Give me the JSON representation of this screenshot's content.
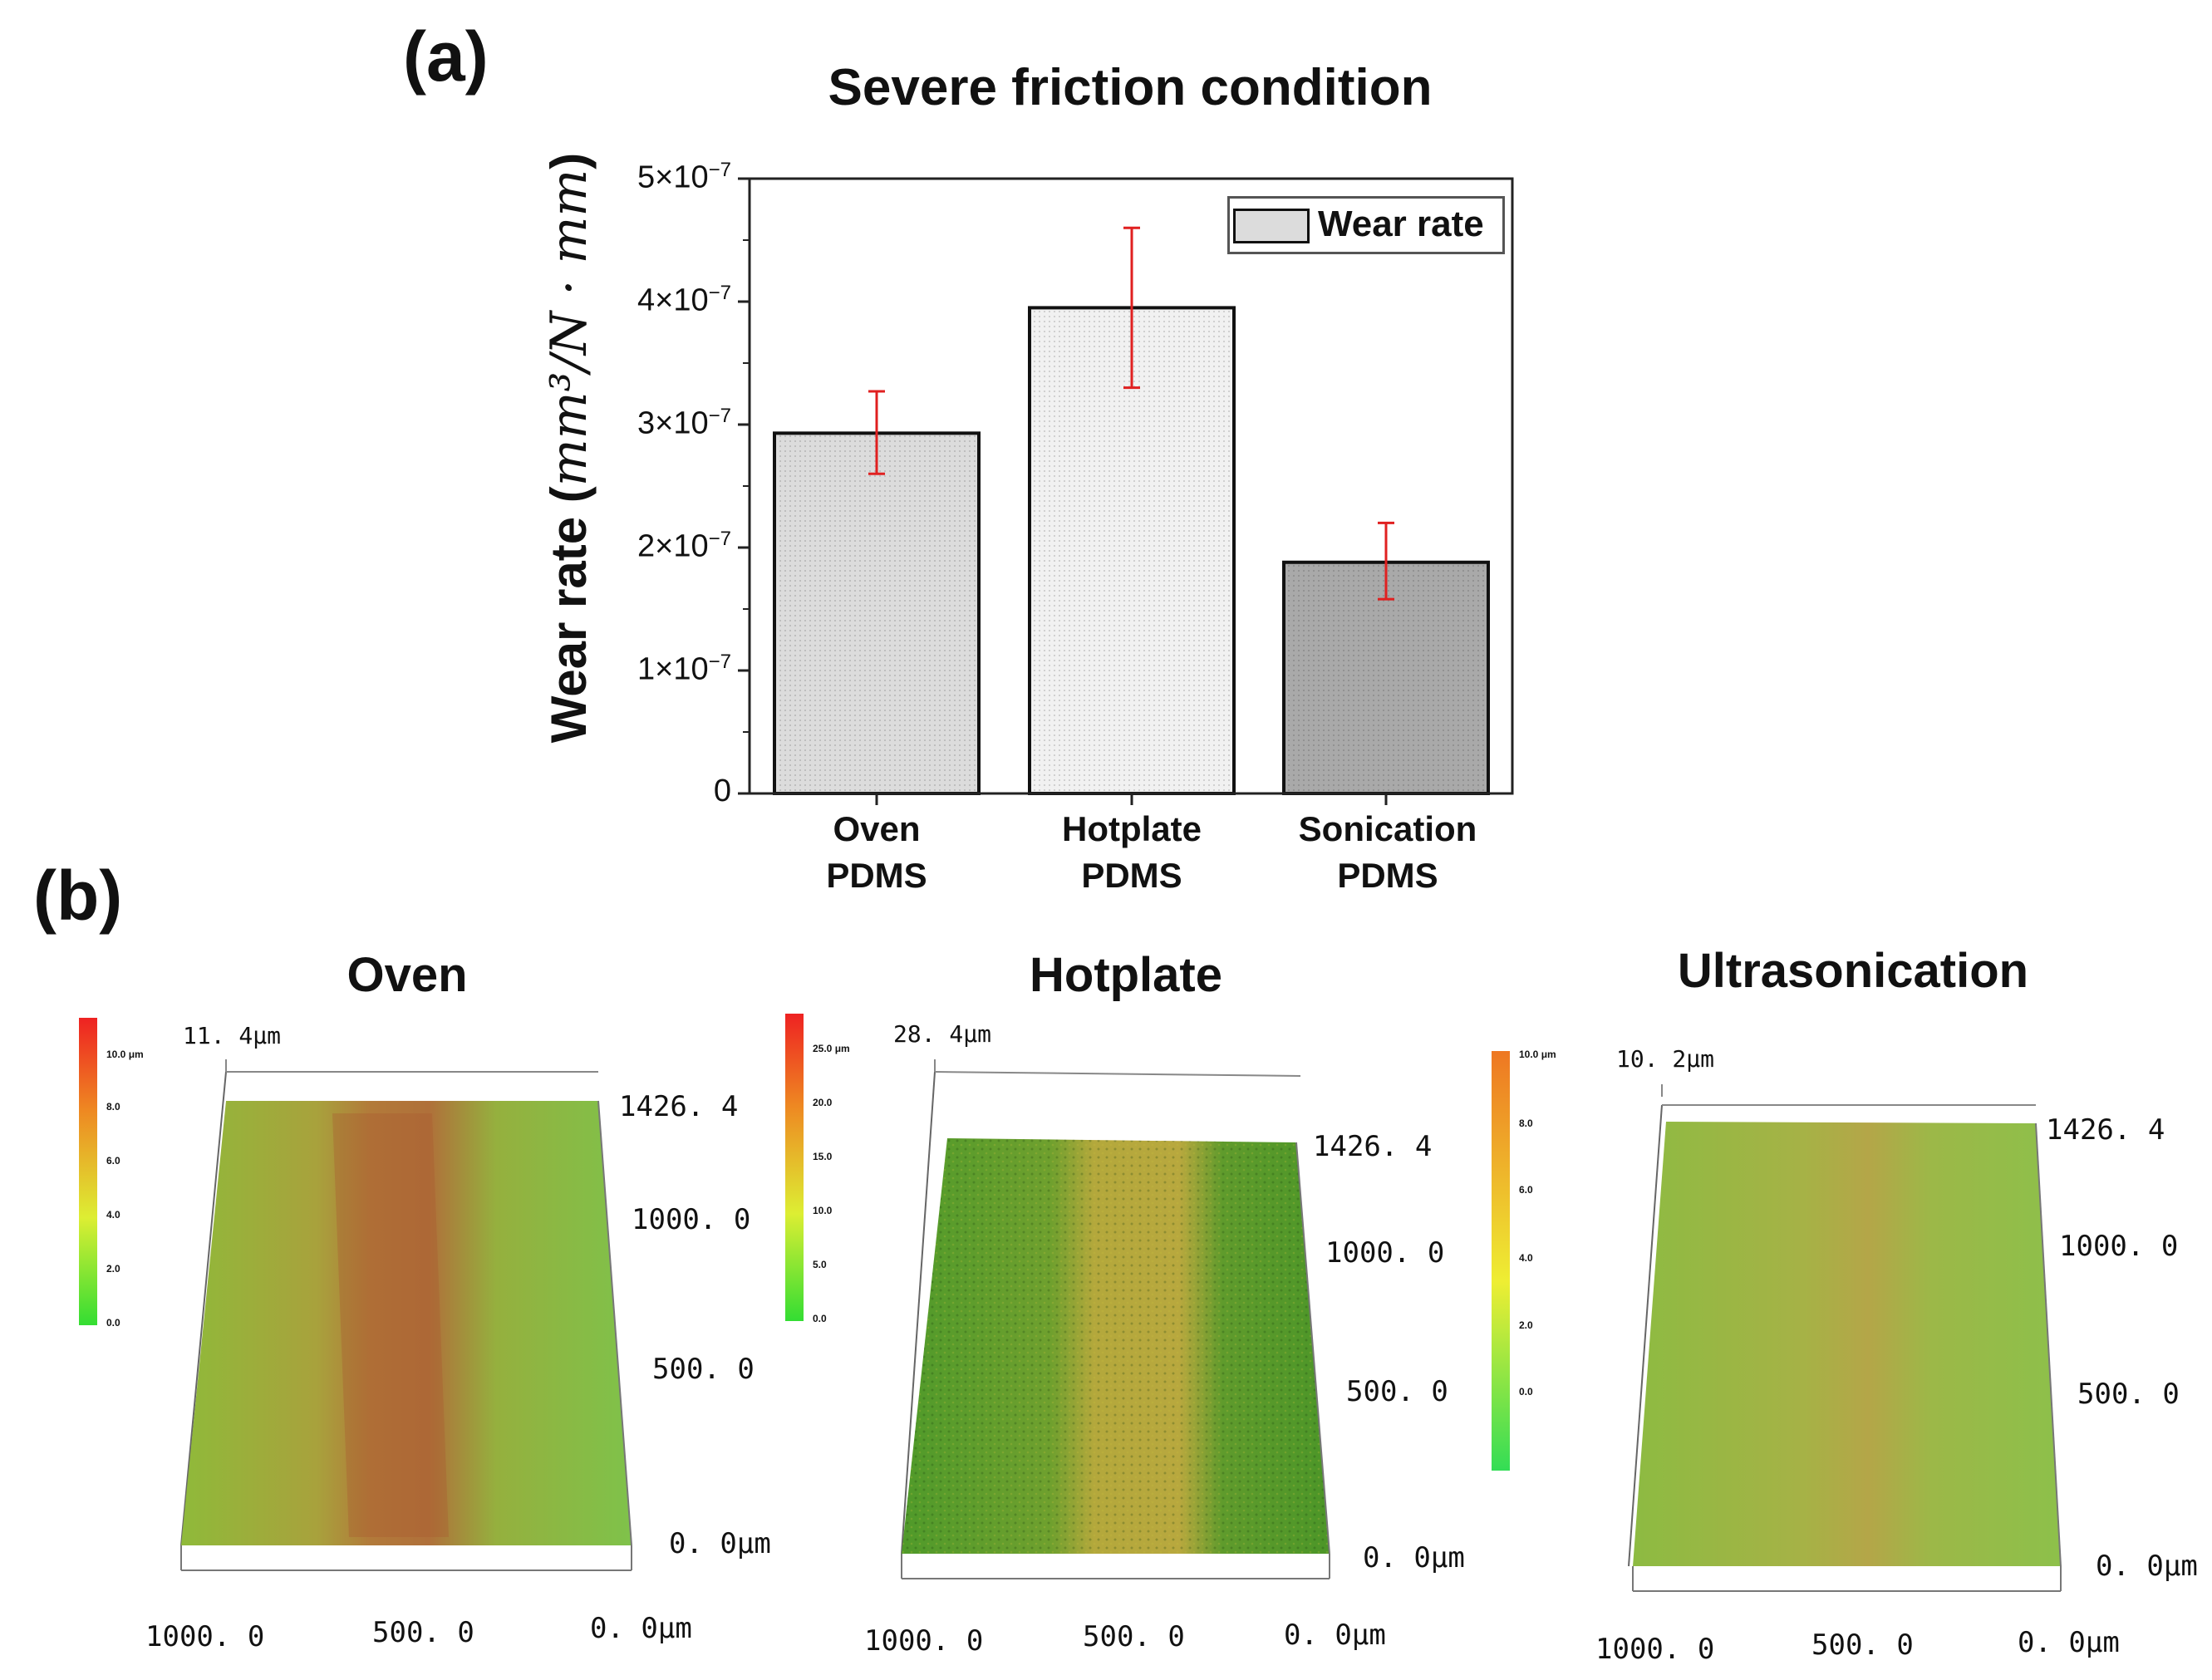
{
  "panel_a_label": "(a)",
  "panel_b_label": "(b)",
  "chart_data": {
    "type": "bar",
    "title": "Severe friction condition",
    "ylabel_prefix": "Wear rate (",
    "ylabel_units": "mm³/N · mm",
    "ylabel_suffix": ")",
    "categories": [
      {
        "line1": "Oven",
        "line2": "PDMS"
      },
      {
        "line1": "Hotplate",
        "line2": "PDMS"
      },
      {
        "line1": "Sonication",
        "line2": "PDMS"
      }
    ],
    "values": [
      2.93e-07,
      3.95e-07,
      1.88e-07
    ],
    "error_low": [
      2.6e-07,
      3.3e-07,
      1.58e-07
    ],
    "error_high": [
      3.27e-07,
      4.6e-07,
      2.2e-07
    ],
    "ylim": [
      0,
      5e-07
    ],
    "yticks": [
      {
        "value": 0,
        "mant": "0",
        "exp": ""
      },
      {
        "value": 1e-07,
        "mant": "1×10",
        "exp": "−7"
      },
      {
        "value": 2e-07,
        "mant": "2×10",
        "exp": "−7"
      },
      {
        "value": 3e-07,
        "mant": "3×10",
        "exp": "−7"
      },
      {
        "value": 4e-07,
        "mant": "4×10",
        "exp": "−7"
      },
      {
        "value": 5e-07,
        "mant": "5×10",
        "exp": "−7"
      }
    ],
    "legend": "Wear rate",
    "bar_fills": [
      "#dcdcdc",
      "#f1f1f1",
      "#a9a9a9"
    ],
    "error_color": "#e02020"
  },
  "maps": [
    {
      "title": "Oven",
      "zmax": "11. 4μm",
      "scale_labels": [
        "10.0 μm",
        "8.0",
        "6.0",
        "4.0",
        "2.0",
        "0.0"
      ],
      "y_labels": [
        "1426. 4",
        "1000. 0",
        "500. 0",
        "0. 0μm"
      ],
      "x_labels": [
        "1000. 0",
        "500. 0",
        "0. 0μm"
      ]
    },
    {
      "title": "Hotplate",
      "zmax": "28. 4μm",
      "scale_labels": [
        "25.0 μm",
        "20.0",
        "15.0",
        "10.0",
        "5.0",
        "0.0"
      ],
      "y_labels": [
        "1426. 4",
        "1000. 0",
        "500. 0",
        "0. 0μm"
      ],
      "x_labels": [
        "1000. 0",
        "500. 0",
        "0. 0μm"
      ]
    },
    {
      "title": "Ultrasonication",
      "zmax": "10. 2μm",
      "scale_labels": [
        "10.0 μm",
        "8.0",
        "6.0",
        "4.0",
        "2.0",
        "0.0"
      ],
      "y_labels": [
        "1426. 4",
        "1000. 0",
        "500. 0",
        "0. 0μm"
      ],
      "x_labels": [
        "1000. 0",
        "500. 0",
        "0. 0μm"
      ]
    }
  ]
}
